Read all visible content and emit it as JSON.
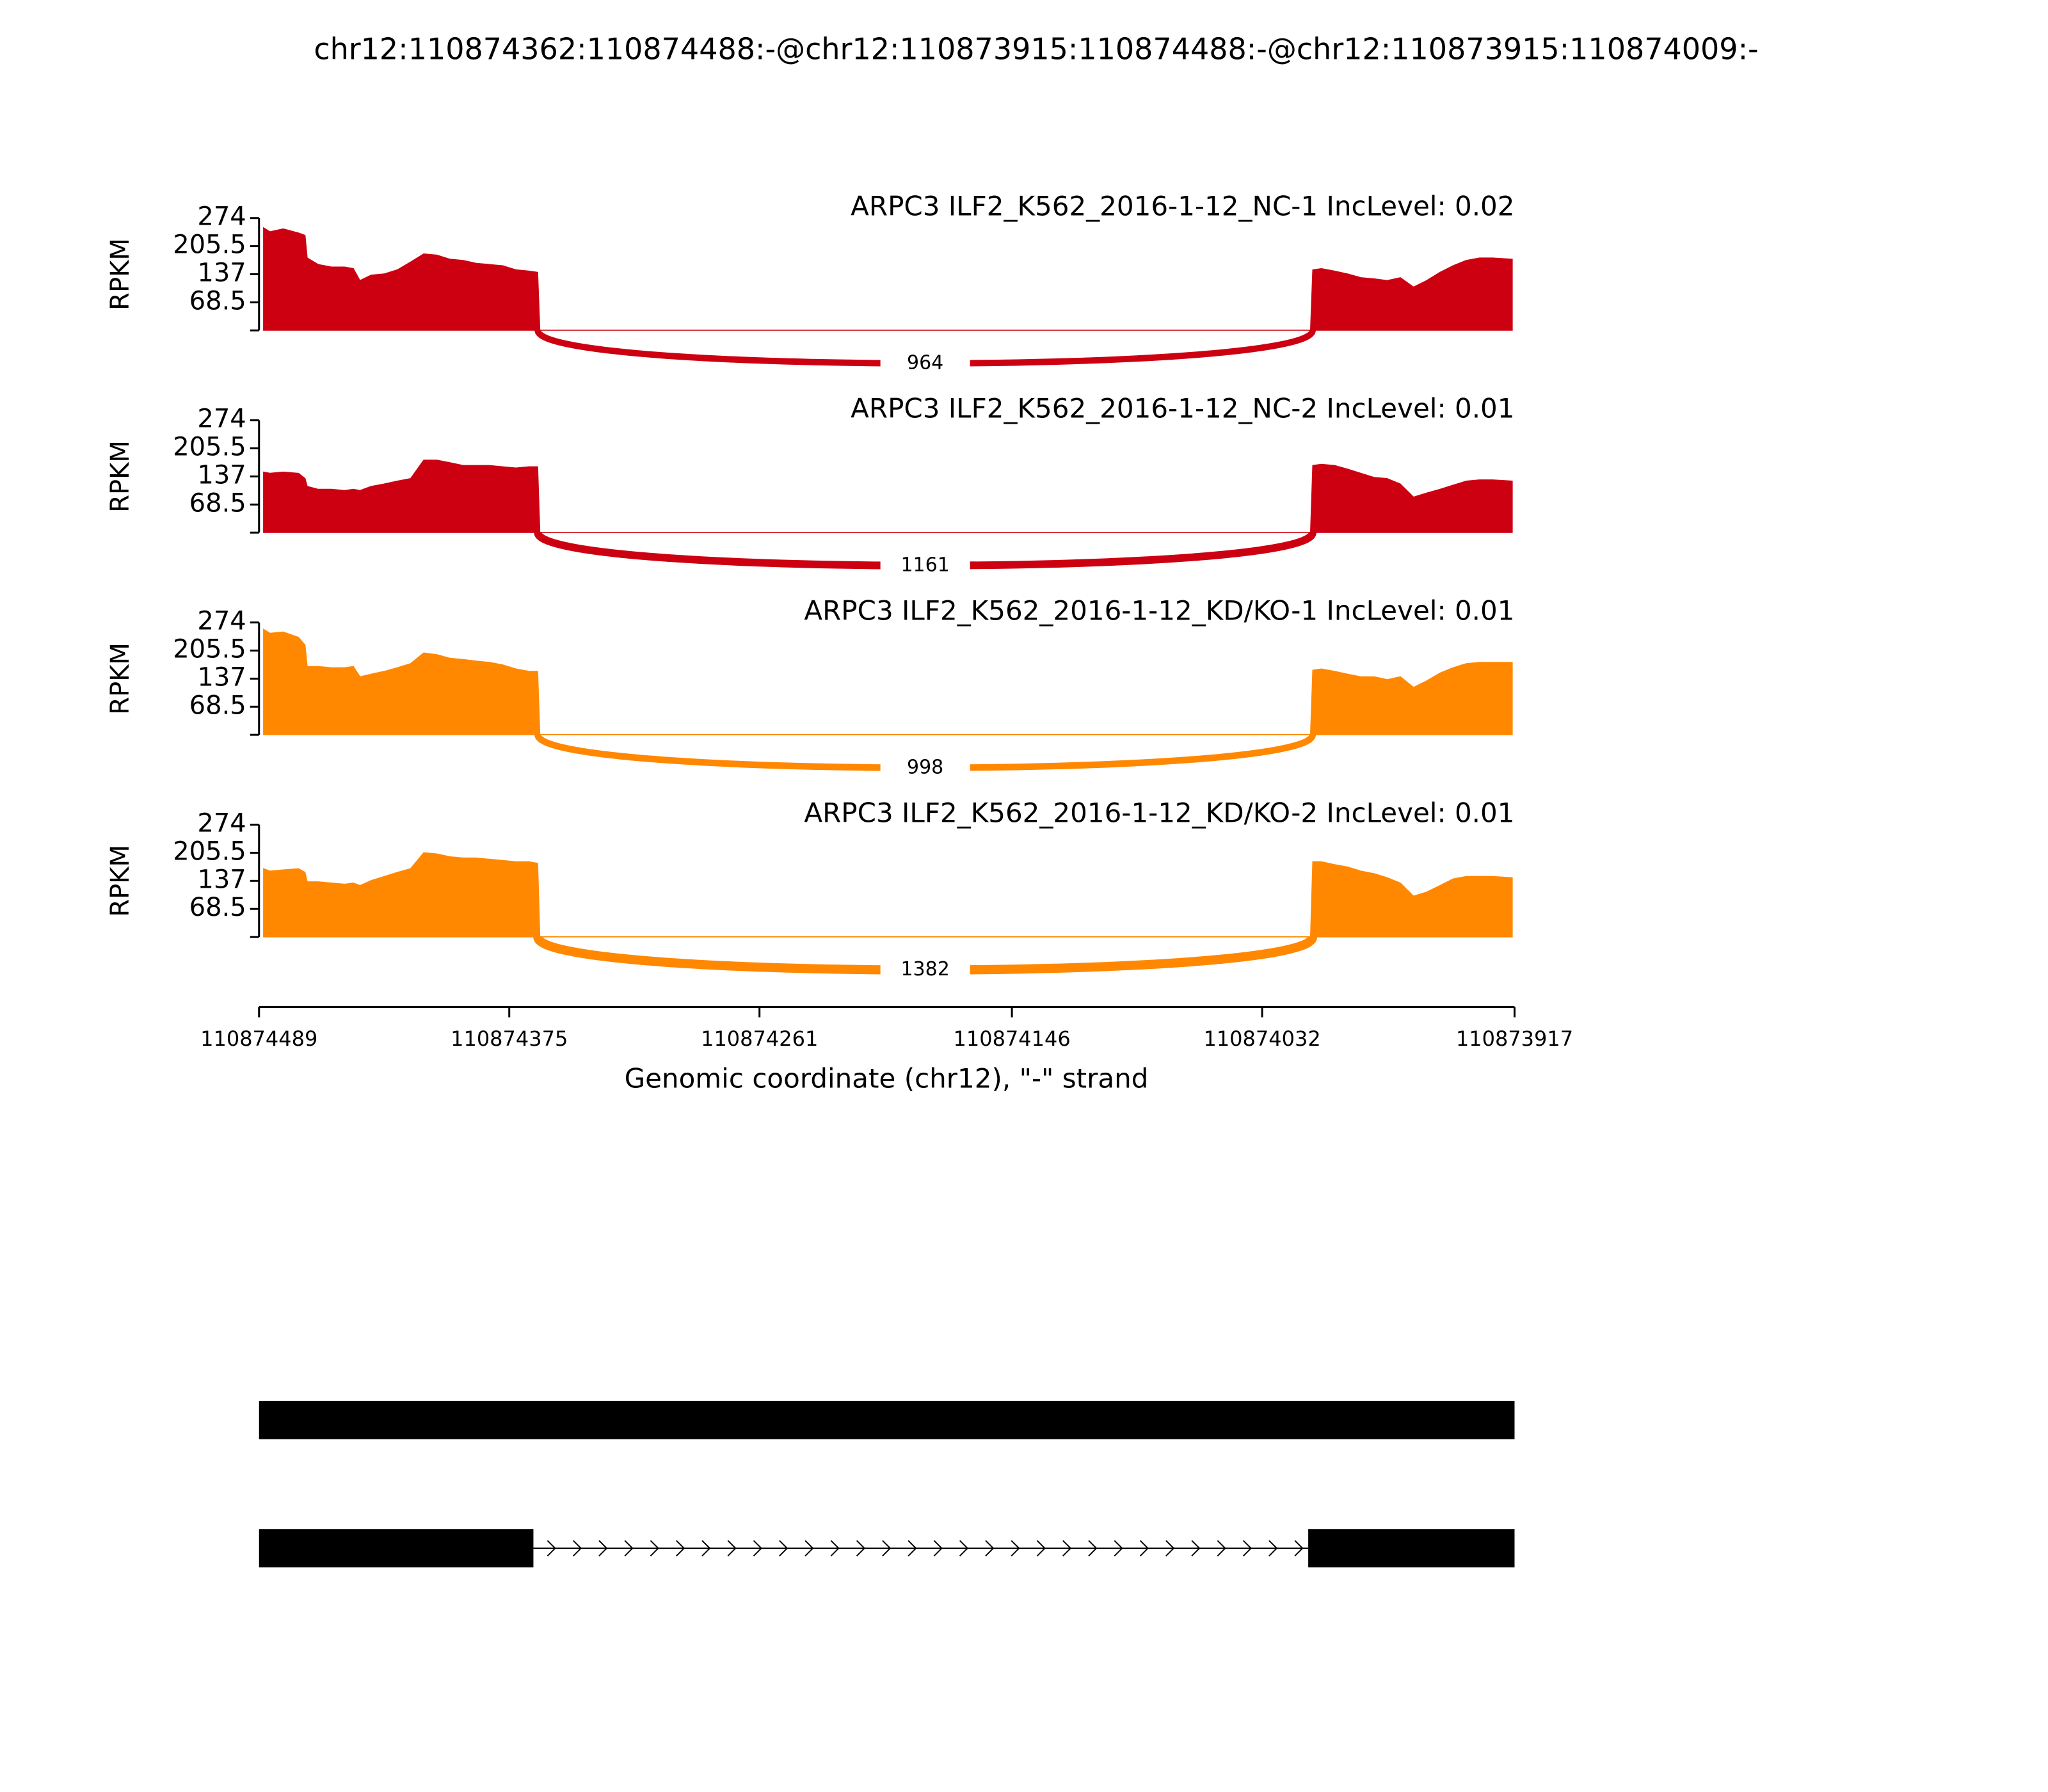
{
  "chart_data": {
    "type": "sashimi",
    "title": "chr12:110874362:110874488:-@chr12:110873915:110874488:-@chr12:110873915:110874009:-",
    "x_label": "Genomic coordinate (chr12), \"-\" strand",
    "y_label": "RPKM",
    "xlim": [
      110874489,
      110873917
    ],
    "xticks": [
      110874489,
      110874375,
      110874261,
      110874146,
      110874032,
      110873917
    ],
    "ylim": [
      0,
      274
    ],
    "yticks": [
      68.5,
      137,
      205.5,
      274
    ],
    "x": [
      110874487,
      110874484,
      110874478,
      110874471,
      110874468,
      110874467,
      110874462,
      110874456,
      110874450,
      110874446,
      110874443,
      110874438,
      110874432,
      110874426,
      110874420,
      110874414,
      110874408,
      110874402,
      110874396,
      110874390,
      110874384,
      110874378,
      110874372,
      110874366,
      110874362,
      110874361,
      110874010,
      110874009,
      110874005,
      110873999,
      110873993,
      110873987,
      110873981,
      110873975,
      110873969,
      110873963,
      110873957,
      110873951,
      110873945,
      110873939,
      110873933,
      110873927,
      110873918
    ],
    "tracks": [
      {
        "name": "ARPC3 ILF2_K562_2016-1-12_NC-1 IncLevel: 0.02",
        "color": "#cc0011",
        "values": [
          251,
          241,
          248,
          238,
          232,
          177,
          161,
          155,
          155,
          151,
          122,
          135,
          138,
          148,
          167,
          187,
          184,
          174,
          171,
          164,
          161,
          158,
          148,
          145,
          142,
          1,
          1,
          148,
          151,
          145,
          138,
          129,
          126,
          122,
          129,
          106,
          122,
          142,
          158,
          171,
          177,
          177,
          174
        ],
        "junction": {
          "start": 110874362,
          "end": 110874009,
          "count": 964
        }
      },
      {
        "name": "ARPC3 ILF2_K562_2016-1-12_NC-2 IncLevel: 0.01",
        "color": "#cc0011",
        "values": [
          148,
          145,
          148,
          145,
          132,
          113,
          106,
          106,
          103,
          106,
          103,
          113,
          119,
          126,
          132,
          177,
          177,
          171,
          164,
          164,
          164,
          161,
          158,
          161,
          161,
          1,
          1,
          164,
          167,
          164,
          155,
          145,
          135,
          132,
          119,
          87,
          97,
          106,
          116,
          126,
          129,
          129,
          126
        ],
        "junction": {
          "start": 110874362,
          "end": 110874009,
          "count": 1161
        }
      },
      {
        "name": "ARPC3 ILF2_K562_2016-1-12_KD/KO-1 IncLevel: 0.01",
        "color": "#ff8800",
        "values": [
          258,
          248,
          251,
          238,
          219,
          167,
          167,
          164,
          164,
          167,
          142,
          148,
          155,
          164,
          174,
          200,
          196,
          187,
          184,
          180,
          177,
          171,
          161,
          155,
          155,
          1,
          1,
          158,
          161,
          155,
          148,
          142,
          142,
          135,
          142,
          116,
          132,
          151,
          164,
          174,
          177,
          177,
          177
        ],
        "junction": {
          "start": 110874362,
          "end": 110874009,
          "count": 998
        }
      },
      {
        "name": "ARPC3 ILF2_K562_2016-1-12_KD/KO-2 IncLevel: 0.01",
        "color": "#ff8800",
        "values": [
          167,
          161,
          164,
          167,
          158,
          135,
          135,
          132,
          129,
          132,
          126,
          138,
          148,
          158,
          167,
          206,
          203,
          196,
          193,
          193,
          190,
          187,
          184,
          184,
          180,
          1,
          1,
          184,
          184,
          177,
          171,
          161,
          155,
          145,
          132,
          100,
          110,
          126,
          142,
          148,
          148,
          148,
          145
        ],
        "junction": {
          "start": 110874362,
          "end": 110874009,
          "count": 1382
        }
      }
    ],
    "transcripts": [
      {
        "exons": [
          [
            110874489,
            110873917
          ]
        ]
      },
      {
        "exons": [
          [
            110874489,
            110874364
          ],
          [
            110874011,
            110873917
          ]
        ]
      }
    ]
  }
}
